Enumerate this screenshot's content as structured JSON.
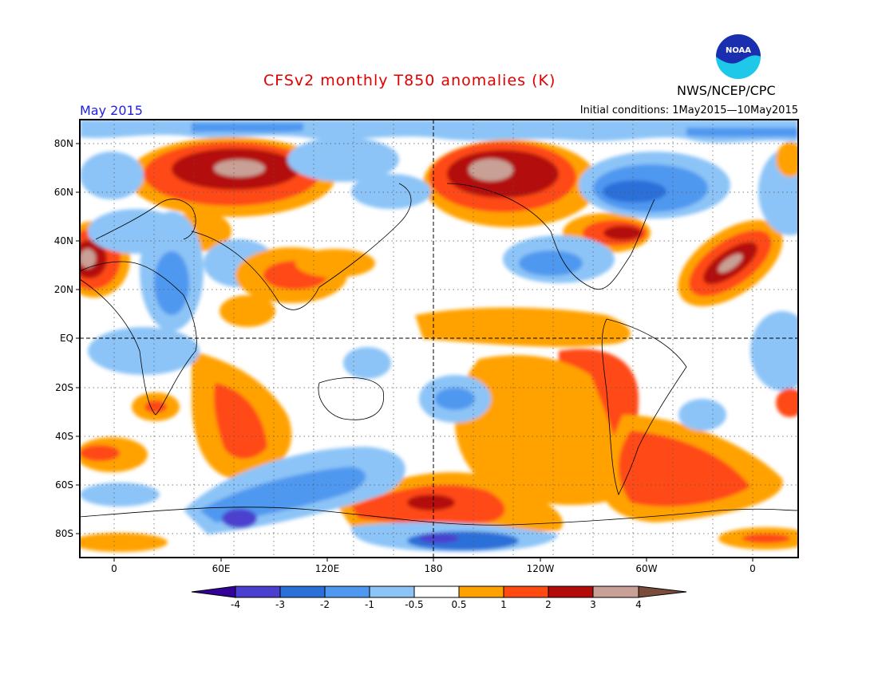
{
  "header": {
    "title": "CFSv2 monthly T850 anomalies (K)",
    "month": "May 2015",
    "init": "Initial conditions: 1May2015—10May2015",
    "org": "NWS/NCEP/CPC",
    "logo_text": "NOAA"
  },
  "axes": {
    "lat_labels": [
      "80N",
      "60N",
      "40N",
      "20N",
      "EQ",
      "20S",
      "40S",
      "60S",
      "80S"
    ],
    "lon_labels": [
      "0",
      "60E",
      "120E",
      "180",
      "120W",
      "60W",
      "0"
    ]
  },
  "colorbar": {
    "labels": [
      "-4",
      "-3",
      "-2",
      "-1",
      "-0.5",
      "0.5",
      "1",
      "2",
      "3",
      "4"
    ],
    "colors": [
      "#330099",
      "#4b3fcf",
      "#2b6fd8",
      "#4f98f0",
      "#8cc4f7",
      "#ffffff",
      "#ffa200",
      "#ff4a12",
      "#b30a0a",
      "#c9a095",
      "#7a4c3a"
    ]
  }
}
